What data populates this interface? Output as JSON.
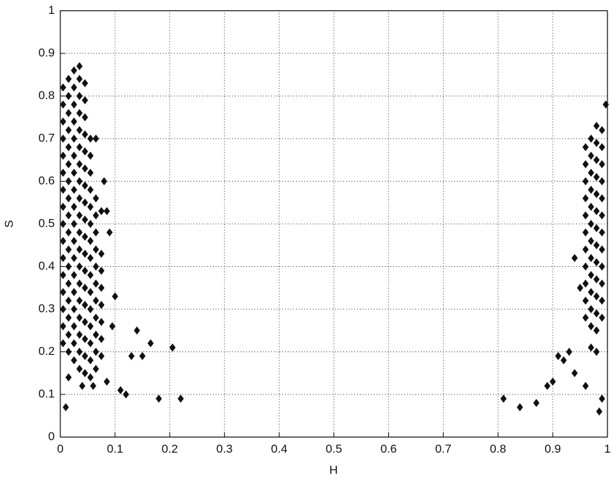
{
  "chart_data": {
    "type": "scatter",
    "x_label": "H",
    "y_label": "S",
    "color": "#111111",
    "grid": true,
    "xlim": [
      0,
      1
    ],
    "ylim": [
      0,
      1
    ],
    "xticks": [
      0,
      0.1,
      0.2,
      0.3,
      0.4,
      0.5,
      0.6,
      0.7,
      0.8,
      0.9,
      1
    ],
    "yticks": [
      0,
      0.1,
      0.2,
      0.3,
      0.4,
      0.5,
      0.6,
      0.7,
      0.8,
      0.9,
      1
    ],
    "x": [
      0.005,
      0.005,
      0.005,
      0.005,
      0.005,
      0.005,
      0.005,
      0.005,
      0.005,
      0.005,
      0.005,
      0.005,
      0.005,
      0.005,
      0.005,
      0.005,
      0.015,
      0.015,
      0.015,
      0.015,
      0.015,
      0.015,
      0.015,
      0.015,
      0.015,
      0.015,
      0.015,
      0.015,
      0.015,
      0.015,
      0.015,
      0.015,
      0.015,
      0.025,
      0.025,
      0.025,
      0.025,
      0.025,
      0.025,
      0.025,
      0.025,
      0.025,
      0.025,
      0.025,
      0.025,
      0.025,
      0.025,
      0.025,
      0.025,
      0.025,
      0.025,
      0.035,
      0.035,
      0.035,
      0.035,
      0.035,
      0.035,
      0.035,
      0.035,
      0.035,
      0.035,
      0.035,
      0.035,
      0.035,
      0.035,
      0.035,
      0.035,
      0.035,
      0.035,
      0.035,
      0.045,
      0.045,
      0.045,
      0.045,
      0.045,
      0.045,
      0.045,
      0.045,
      0.045,
      0.045,
      0.045,
      0.045,
      0.045,
      0.045,
      0.045,
      0.045,
      0.045,
      0.045,
      0.055,
      0.055,
      0.055,
      0.055,
      0.055,
      0.055,
      0.055,
      0.055,
      0.055,
      0.055,
      0.055,
      0.055,
      0.055,
      0.055,
      0.055,
      0.065,
      0.065,
      0.065,
      0.065,
      0.065,
      0.065,
      0.065,
      0.065,
      0.065,
      0.065,
      0.065,
      0.075,
      0.075,
      0.075,
      0.075,
      0.075,
      0.075,
      0.075,
      0.075,
      0.96,
      0.96,
      0.96,
      0.96,
      0.96,
      0.96,
      0.96,
      0.96,
      0.96,
      0.96,
      0.96,
      0.97,
      0.97,
      0.97,
      0.97,
      0.97,
      0.97,
      0.97,
      0.97,
      0.97,
      0.97,
      0.97,
      0.97,
      0.98,
      0.98,
      0.98,
      0.98,
      0.98,
      0.98,
      0.98,
      0.98,
      0.98,
      0.98,
      0.98,
      0.98,
      0.98,
      0.99,
      0.99,
      0.99,
      0.99,
      0.99,
      0.99,
      0.99,
      0.99,
      0.99,
      0.99,
      0.99,
      0.99,
      0.997,
      0.95,
      0.94,
      0.93,
      0.92,
      0.94,
      0.96,
      0.985,
      0.99,
      0.98,
      0.97,
      0.9,
      0.89,
      0.87,
      0.84,
      0.81,
      0.91,
      0.01,
      0.015,
      0.04,
      0.06,
      0.085,
      0.09,
      0.085,
      0.1,
      0.11,
      0.12,
      0.14,
      0.13,
      0.15,
      0.165,
      0.18,
      0.205,
      0.22,
      0.095,
      0.08,
      0.065
    ],
    "values": [
      0.22,
      0.26,
      0.3,
      0.34,
      0.38,
      0.42,
      0.46,
      0.5,
      0.54,
      0.58,
      0.62,
      0.66,
      0.7,
      0.74,
      0.78,
      0.82,
      0.2,
      0.24,
      0.28,
      0.32,
      0.36,
      0.4,
      0.44,
      0.48,
      0.52,
      0.56,
      0.6,
      0.64,
      0.68,
      0.72,
      0.76,
      0.8,
      0.84,
      0.18,
      0.22,
      0.26,
      0.3,
      0.34,
      0.38,
      0.42,
      0.46,
      0.5,
      0.54,
      0.58,
      0.62,
      0.66,
      0.7,
      0.74,
      0.78,
      0.82,
      0.86,
      0.16,
      0.2,
      0.24,
      0.28,
      0.32,
      0.36,
      0.4,
      0.44,
      0.48,
      0.52,
      0.56,
      0.6,
      0.64,
      0.68,
      0.72,
      0.76,
      0.8,
      0.84,
      0.87,
      0.15,
      0.19,
      0.23,
      0.27,
      0.31,
      0.35,
      0.39,
      0.43,
      0.47,
      0.51,
      0.55,
      0.59,
      0.63,
      0.67,
      0.71,
      0.75,
      0.79,
      0.83,
      0.14,
      0.18,
      0.22,
      0.26,
      0.3,
      0.34,
      0.38,
      0.42,
      0.46,
      0.5,
      0.54,
      0.58,
      0.62,
      0.66,
      0.7,
      0.16,
      0.2,
      0.24,
      0.28,
      0.32,
      0.36,
      0.4,
      0.44,
      0.48,
      0.52,
      0.56,
      0.19,
      0.23,
      0.27,
      0.31,
      0.35,
      0.39,
      0.43,
      0.53,
      0.28,
      0.32,
      0.36,
      0.4,
      0.44,
      0.48,
      0.52,
      0.56,
      0.6,
      0.64,
      0.68,
      0.26,
      0.3,
      0.34,
      0.38,
      0.42,
      0.46,
      0.5,
      0.54,
      0.58,
      0.62,
      0.66,
      0.7,
      0.25,
      0.29,
      0.33,
      0.37,
      0.41,
      0.45,
      0.49,
      0.53,
      0.57,
      0.61,
      0.65,
      0.69,
      0.73,
      0.28,
      0.32,
      0.36,
      0.4,
      0.44,
      0.48,
      0.52,
      0.56,
      0.6,
      0.64,
      0.68,
      0.72,
      0.78,
      0.35,
      0.42,
      0.2,
      0.18,
      0.15,
      0.12,
      0.06,
      0.09,
      0.2,
      0.21,
      0.13,
      0.12,
      0.08,
      0.07,
      0.09,
      0.19,
      0.07,
      0.14,
      0.12,
      0.12,
      0.13,
      0.48,
      0.53,
      0.33,
      0.11,
      0.1,
      0.25,
      0.19,
      0.19,
      0.22,
      0.09,
      0.21,
      0.09,
      0.26,
      0.6,
      0.7
    ]
  }
}
